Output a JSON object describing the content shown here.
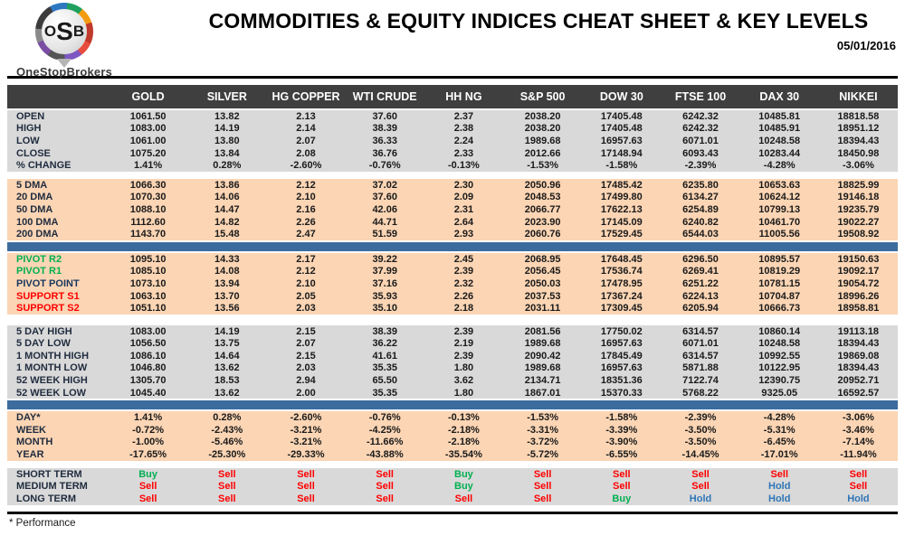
{
  "header": {
    "logo": {
      "o": "O",
      "s": "S",
      "b": "B",
      "brand": "OneStopBrokers"
    },
    "title": "COMMODITIES & EQUITY INDICES CHEAT SHEET & KEY LEVELS",
    "date": "05/01/2016"
  },
  "colors": {
    "header_bg": "#3F3F3F",
    "section_gray": "#D9D9D9",
    "section_peach": "#FBD5B4",
    "divider_blue": "#3C6C9E",
    "label_default": "#1F2B3E",
    "pivot_resistance": "#00B050",
    "pivot_point": "#17375E",
    "support": "#FF0000",
    "signals": {
      "Buy": "#00B050",
      "Sell": "#FF0000",
      "Hold": "#2E75B6"
    }
  },
  "table": {
    "columns": [
      "GOLD",
      "SILVER",
      "HG COPPER",
      "WTI CRUDE",
      "HH NG",
      "S&P 500",
      "DOW 30",
      "FTSE 100",
      "DAX 30",
      "NIKKEI"
    ],
    "sections": [
      {
        "id": "ohlc",
        "bg": "gray",
        "after": "gap8",
        "rows": [
          {
            "label": "OPEN",
            "values": [
              "1061.50",
              "13.82",
              "2.13",
              "37.60",
              "2.37",
              "2038.20",
              "17405.48",
              "6242.32",
              "10485.81",
              "18818.58"
            ]
          },
          {
            "label": "HIGH",
            "values": [
              "1083.00",
              "14.19",
              "2.14",
              "38.39",
              "2.38",
              "2038.20",
              "17405.48",
              "6242.32",
              "10485.91",
              "18951.12"
            ]
          },
          {
            "label": "LOW",
            "values": [
              "1061.00",
              "13.80",
              "2.07",
              "36.33",
              "2.24",
              "1989.68",
              "16957.63",
              "6071.01",
              "10248.58",
              "18394.43"
            ]
          },
          {
            "label": "CLOSE",
            "values": [
              "1075.20",
              "13.84",
              "2.08",
              "36.76",
              "2.33",
              "2012.66",
              "17148.94",
              "6093.43",
              "10283.44",
              "18450.98"
            ]
          },
          {
            "label": "% CHANGE",
            "values": [
              "1.41%",
              "0.28%",
              "-2.60%",
              "-0.76%",
              "-0.13%",
              "-1.53%",
              "-1.58%",
              "-2.39%",
              "-4.28%",
              "-3.06%"
            ]
          }
        ]
      },
      {
        "id": "dma",
        "bg": "peach",
        "after": "bar",
        "rows": [
          {
            "label": "5 DMA",
            "values": [
              "1066.30",
              "13.86",
              "2.12",
              "37.02",
              "2.30",
              "2050.96",
              "17485.42",
              "6235.80",
              "10653.63",
              "18825.99"
            ]
          },
          {
            "label": "20 DMA",
            "values": [
              "1070.30",
              "14.06",
              "2.10",
              "37.60",
              "2.09",
              "2048.53",
              "17499.80",
              "6134.27",
              "10624.12",
              "19146.18"
            ]
          },
          {
            "label": "50 DMA",
            "values": [
              "1088.10",
              "14.47",
              "2.16",
              "42.06",
              "2.31",
              "2066.77",
              "17622.13",
              "6254.89",
              "10799.13",
              "19235.79"
            ]
          },
          {
            "label": "100 DMA",
            "values": [
              "1112.60",
              "14.82",
              "2.26",
              "44.71",
              "2.64",
              "2023.90",
              "17145.09",
              "6240.82",
              "10461.70",
              "19022.27"
            ]
          },
          {
            "label": "200 DMA",
            "values": [
              "1143.70",
              "15.48",
              "2.47",
              "51.59",
              "2.93",
              "2060.76",
              "17529.45",
              "6544.03",
              "11005.56",
              "19508.92"
            ]
          }
        ]
      },
      {
        "id": "pivots",
        "bg": "peach",
        "after": "gap12",
        "rows": [
          {
            "label": "PIVOT R2",
            "label_color": "#00B050",
            "values": [
              "1095.10",
              "14.33",
              "2.17",
              "39.22",
              "2.45",
              "2068.95",
              "17648.45",
              "6296.50",
              "10895.57",
              "19150.63"
            ]
          },
          {
            "label": "PIVOT R1",
            "label_color": "#00B050",
            "values": [
              "1085.10",
              "14.08",
              "2.12",
              "37.99",
              "2.39",
              "2056.45",
              "17536.74",
              "6269.41",
              "10819.29",
              "19092.17"
            ]
          },
          {
            "label": "PIVOT POINT",
            "label_color": "#17375E",
            "values": [
              "1073.10",
              "13.94",
              "2.10",
              "37.16",
              "2.32",
              "2050.03",
              "17478.95",
              "6251.22",
              "10781.15",
              "19054.72"
            ]
          },
          {
            "label": "SUPPORT S1",
            "label_color": "#FF0000",
            "values": [
              "1063.10",
              "13.70",
              "2.05",
              "35.93",
              "2.26",
              "2037.53",
              "17367.24",
              "6224.13",
              "10704.87",
              "18996.26"
            ]
          },
          {
            "label": "SUPPORT S2",
            "label_color": "#FF0000",
            "values": [
              "1051.10",
              "13.56",
              "2.03",
              "35.10",
              "2.18",
              "2031.11",
              "17309.45",
              "6205.94",
              "10666.73",
              "18958.81"
            ]
          }
        ]
      },
      {
        "id": "ranges",
        "bg": "gray",
        "after": "bar",
        "rows": [
          {
            "label": "5 DAY HIGH",
            "values": [
              "1083.00",
              "14.19",
              "2.15",
              "38.39",
              "2.39",
              "2081.56",
              "17750.02",
              "6314.57",
              "10860.14",
              "19113.18"
            ]
          },
          {
            "label": "5 DAY LOW",
            "values": [
              "1056.50",
              "13.75",
              "2.07",
              "36.22",
              "2.19",
              "1989.68",
              "16957.63",
              "6071.01",
              "10248.58",
              "18394.43"
            ]
          },
          {
            "label": "1 MONTH HIGH",
            "values": [
              "1086.10",
              "14.64",
              "2.15",
              "41.61",
              "2.39",
              "2090.42",
              "17845.49",
              "6314.57",
              "10992.55",
              "19869.08"
            ]
          },
          {
            "label": "1 MONTH LOW",
            "values": [
              "1046.80",
              "13.62",
              "2.03",
              "35.35",
              "1.80",
              "1989.68",
              "16957.63",
              "5871.88",
              "10122.95",
              "18394.43"
            ]
          },
          {
            "label": "52 WEEK HIGH",
            "values": [
              "1305.70",
              "18.53",
              "2.94",
              "65.50",
              "3.62",
              "2134.71",
              "18351.36",
              "7122.74",
              "12390.75",
              "20952.71"
            ]
          },
          {
            "label": "52 WEEK LOW",
            "values": [
              "1045.40",
              "13.62",
              "2.00",
              "35.35",
              "1.80",
              "1867.01",
              "15370.33",
              "5768.22",
              "9325.05",
              "16592.57"
            ]
          }
        ]
      },
      {
        "id": "performance",
        "bg": "peach",
        "after": "gap8",
        "rows": [
          {
            "label": "DAY*",
            "values": [
              "1.41%",
              "0.28%",
              "-2.60%",
              "-0.76%",
              "-0.13%",
              "-1.53%",
              "-1.58%",
              "-2.39%",
              "-4.28%",
              "-3.06%"
            ]
          },
          {
            "label": "WEEK",
            "values": [
              "-0.72%",
              "-2.43%",
              "-3.21%",
              "-4.25%",
              "-2.18%",
              "-3.31%",
              "-3.39%",
              "-3.50%",
              "-5.31%",
              "-3.46%"
            ]
          },
          {
            "label": "MONTH",
            "values": [
              "-1.00%",
              "-5.46%",
              "-3.21%",
              "-11.66%",
              "-2.18%",
              "-3.72%",
              "-3.90%",
              "-3.50%",
              "-6.45%",
              "-7.14%"
            ]
          },
          {
            "label": "YEAR",
            "values": [
              "-17.65%",
              "-25.30%",
              "-29.33%",
              "-43.88%",
              "-35.54%",
              "-5.72%",
              "-6.55%",
              "-14.45%",
              "-17.01%",
              "-11.94%"
            ]
          }
        ]
      },
      {
        "id": "signals",
        "bg": "gray",
        "after": null,
        "rows": [
          {
            "label": "SHORT TERM",
            "values": [
              "Buy",
              "Sell",
              "Sell",
              "Sell",
              "Buy",
              "Sell",
              "Sell",
              "Sell",
              "Sell",
              "Sell"
            ]
          },
          {
            "label": "MEDIUM TERM",
            "values": [
              "Sell",
              "Sell",
              "Sell",
              "Sell",
              "Buy",
              "Sell",
              "Sell",
              "Sell",
              "Hold",
              "Sell"
            ]
          },
          {
            "label": "LONG TERM",
            "values": [
              "Sell",
              "Sell",
              "Sell",
              "Sell",
              "Sell",
              "Sell",
              "Buy",
              "Hold",
              "Hold",
              "Hold"
            ]
          }
        ]
      }
    ]
  },
  "footer": {
    "note": "* Performance"
  }
}
